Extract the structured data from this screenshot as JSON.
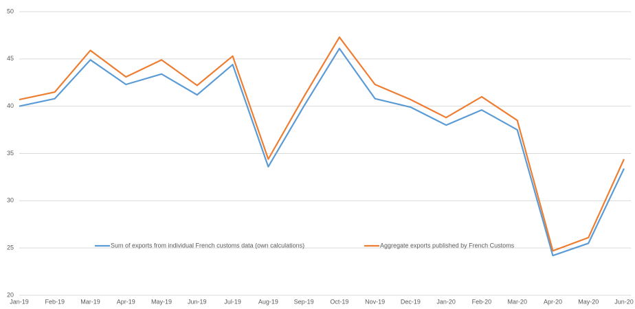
{
  "chart_data": {
    "type": "line",
    "categories": [
      "Jan-19",
      "Feb-19",
      "Mar-19",
      "Apr-19",
      "May-19",
      "Jun-19",
      "Jul-19",
      "Aug-19",
      "Sep-19",
      "Oct-19",
      "Nov-19",
      "Dec-19",
      "Jan-20",
      "Feb-20",
      "Mar-20",
      "Apr-20",
      "May-20",
      "Jun-20"
    ],
    "series": [
      {
        "name": "Sum of exports from individual French customs data (own calculations)",
        "color": "#5b9bd5",
        "values": [
          40.0,
          40.8,
          44.9,
          42.3,
          43.4,
          41.2,
          44.4,
          33.6,
          40.0,
          46.1,
          40.8,
          39.9,
          38.0,
          39.6,
          37.5,
          24.2,
          25.5,
          33.4
        ]
      },
      {
        "name": "Aggregate exports published by French Customs",
        "color": "#ed7d31",
        "values": [
          40.7,
          41.5,
          45.9,
          43.1,
          44.9,
          42.2,
          45.3,
          34.4,
          41.0,
          47.3,
          42.3,
          40.7,
          38.8,
          41.0,
          38.5,
          24.7,
          26.1,
          34.4
        ]
      }
    ],
    "ylim": [
      20,
      50
    ],
    "yticks": [
      20,
      25,
      30,
      35,
      40,
      45,
      50
    ],
    "grid": true,
    "legend": "inside"
  }
}
